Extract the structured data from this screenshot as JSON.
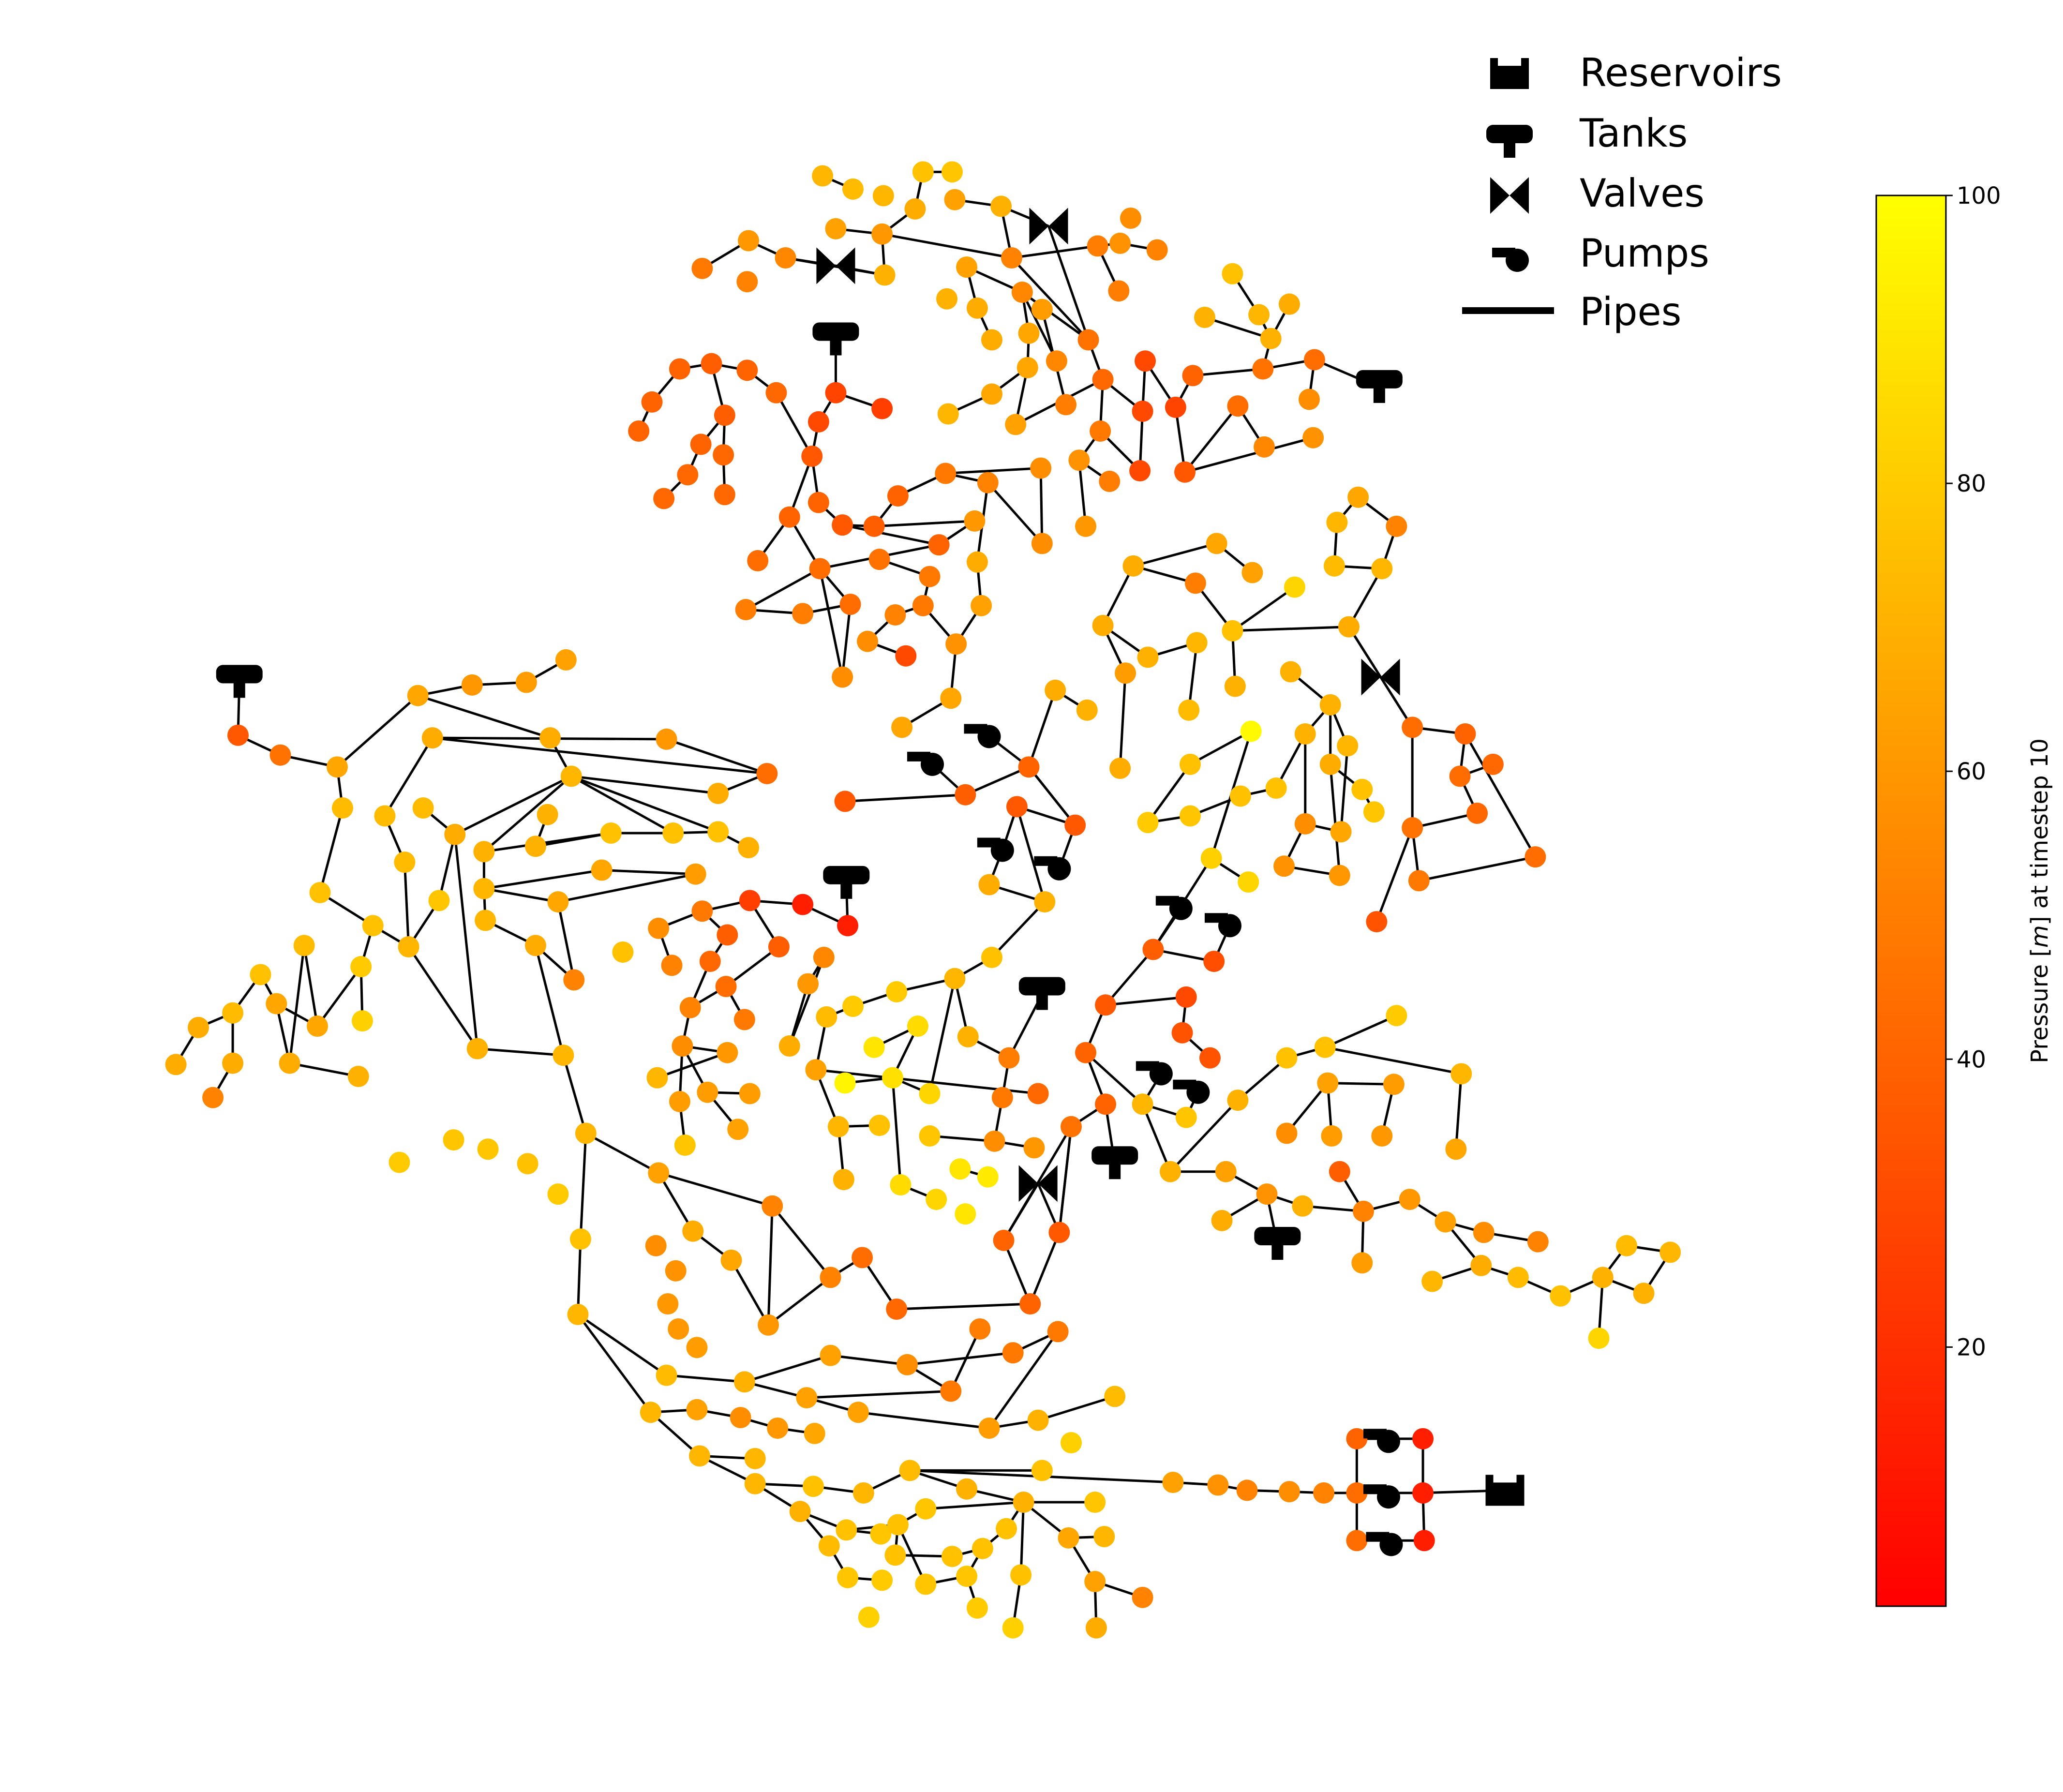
{
  "legend": {
    "items": [
      {
        "label": "Reservoirs",
        "icon": "reservoir-icon"
      },
      {
        "label": "Tanks",
        "icon": "tank-icon"
      },
      {
        "label": "Valves",
        "icon": "valve-icon"
      },
      {
        "label": "Pumps",
        "icon": "pump-icon"
      },
      {
        "label": "Pipes",
        "icon": "pipe-line-icon"
      }
    ]
  },
  "colorbar": {
    "label": "Pressure [m] at timestep 10",
    "label_prefix": "Pressure [",
    "label_unit": "m",
    "label_suffix": "] at timestep 10",
    "colormap": "autumn",
    "color_low": "#ff0000",
    "color_high": "#ffff00",
    "range": [
      2,
      100
    ],
    "ticks": [
      "20",
      "40",
      "60",
      "80",
      "100"
    ],
    "tick_values": [
      20,
      40,
      60,
      80,
      100
    ]
  },
  "colors": {
    "pipe": "#000000",
    "component": "#000000"
  }
}
